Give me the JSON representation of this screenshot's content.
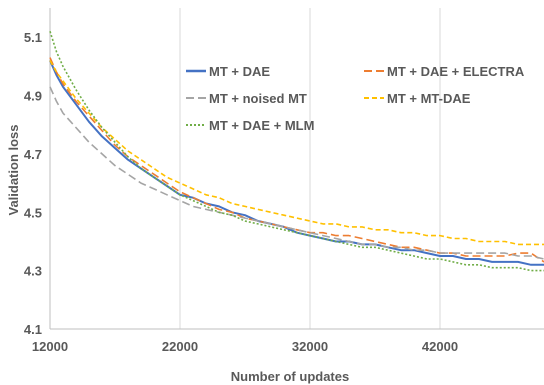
{
  "chart_data": {
    "type": "line",
    "title": "",
    "xlabel": "Number of updates",
    "ylabel": "Validation loss",
    "xlim": [
      12000,
      50000
    ],
    "ylim": [
      4.1,
      5.2
    ],
    "xticks": [
      12000,
      22000,
      32000,
      42000
    ],
    "xtick_labels": [
      "12000",
      "22000",
      "32000",
      "42000"
    ],
    "yticks": [
      4.1,
      4.3,
      4.5,
      4.7,
      4.9,
      5.1
    ],
    "ytick_labels": [
      "4.1",
      "4.3",
      "4.5",
      "4.7",
      "4.9",
      "5.1"
    ],
    "grid": {
      "vertical": true,
      "horizontal": false
    },
    "legend_position": "inside-top",
    "series": [
      {
        "name": "MT + DAE",
        "color": "#4472c4",
        "dash": "solid",
        "x": [
          12000,
          12500,
          13000,
          14000,
          15000,
          16000,
          17000,
          18000,
          19000,
          20000,
          21000,
          22000,
          23000,
          24000,
          25000,
          26000,
          27000,
          28000,
          29000,
          30000,
          31000,
          32000,
          33000,
          34000,
          35000,
          36000,
          37000,
          38000,
          39000,
          40000,
          41000,
          42000,
          43000,
          44000,
          45000,
          46000,
          47000,
          48000,
          49000,
          50000
        ],
        "y": [
          5.02,
          4.97,
          4.93,
          4.87,
          4.81,
          4.76,
          4.72,
          4.68,
          4.65,
          4.62,
          4.59,
          4.56,
          4.55,
          4.53,
          4.52,
          4.5,
          4.49,
          4.47,
          4.46,
          4.45,
          4.43,
          4.42,
          4.41,
          4.4,
          4.4,
          4.39,
          4.39,
          4.38,
          4.37,
          4.37,
          4.36,
          4.35,
          4.35,
          4.34,
          4.34,
          4.33,
          4.33,
          4.33,
          4.32,
          4.32
        ]
      },
      {
        "name": "MT + DAE + ELECTRA",
        "color": "#ed7d31",
        "dash": "long-dash",
        "x": [
          12000,
          12500,
          13000,
          14000,
          15000,
          16000,
          17000,
          18000,
          19000,
          20000,
          21000,
          22000,
          23000,
          24000,
          25000,
          26000,
          27000,
          28000,
          29000,
          30000,
          31000,
          32000,
          33000,
          34000,
          35000,
          36000,
          37000,
          38000,
          39000,
          40000,
          41000,
          42000,
          43000,
          44000,
          45000,
          46000,
          47000,
          48000,
          49000,
          50000
        ],
        "y": [
          5.03,
          4.98,
          4.94,
          4.88,
          4.83,
          4.78,
          4.73,
          4.69,
          4.66,
          4.63,
          4.6,
          4.57,
          4.55,
          4.53,
          4.51,
          4.5,
          4.48,
          4.47,
          4.46,
          4.45,
          4.44,
          4.43,
          4.43,
          4.42,
          4.42,
          4.41,
          4.4,
          4.39,
          4.38,
          4.38,
          4.37,
          4.36,
          4.36,
          4.35,
          4.35,
          4.35,
          4.35,
          4.36,
          4.36,
          4.33
        ]
      },
      {
        "name": "MT + noised MT",
        "color": "#a5a5a5",
        "dash": "long-dash",
        "x": [
          12000,
          12500,
          13000,
          14000,
          15000,
          16000,
          17000,
          18000,
          19000,
          20000,
          21000,
          22000,
          23000,
          24000,
          25000,
          26000,
          27000,
          28000,
          29000,
          30000,
          31000,
          32000,
          33000,
          34000,
          35000,
          36000,
          37000,
          38000,
          39000,
          40000,
          41000,
          42000,
          43000,
          44000,
          45000,
          46000,
          47000,
          48000,
          49000,
          50000
        ],
        "y": [
          4.93,
          4.88,
          4.84,
          4.79,
          4.74,
          4.7,
          4.66,
          4.63,
          4.6,
          4.58,
          4.56,
          4.54,
          4.52,
          4.51,
          4.5,
          4.49,
          4.48,
          4.47,
          4.46,
          4.45,
          4.44,
          4.43,
          4.42,
          4.41,
          4.4,
          4.39,
          4.39,
          4.38,
          4.38,
          4.37,
          4.37,
          4.36,
          4.36,
          4.36,
          4.36,
          4.36,
          4.36,
          4.35,
          4.35,
          4.34
        ]
      },
      {
        "name": "MT + MT-DAE",
        "color": "#ffc000",
        "dash": "dash",
        "x": [
          12000,
          12500,
          13000,
          14000,
          15000,
          16000,
          17000,
          18000,
          19000,
          20000,
          21000,
          22000,
          23000,
          24000,
          25000,
          26000,
          27000,
          28000,
          29000,
          30000,
          31000,
          32000,
          33000,
          34000,
          35000,
          36000,
          37000,
          38000,
          39000,
          40000,
          41000,
          42000,
          43000,
          44000,
          45000,
          46000,
          47000,
          48000,
          49000,
          50000
        ],
        "y": [
          5.02,
          4.98,
          4.95,
          4.89,
          4.84,
          4.79,
          4.75,
          4.71,
          4.68,
          4.65,
          4.62,
          4.6,
          4.58,
          4.56,
          4.55,
          4.53,
          4.52,
          4.51,
          4.5,
          4.49,
          4.48,
          4.47,
          4.46,
          4.46,
          4.45,
          4.45,
          4.44,
          4.44,
          4.43,
          4.43,
          4.42,
          4.42,
          4.41,
          4.41,
          4.4,
          4.4,
          4.4,
          4.39,
          4.39,
          4.39
        ]
      },
      {
        "name": "MT + DAE + MLM",
        "color": "#70ad47",
        "dash": "dot",
        "x": [
          12000,
          12500,
          13000,
          14000,
          15000,
          16000,
          17000,
          18000,
          19000,
          20000,
          21000,
          22000,
          23000,
          24000,
          25000,
          26000,
          27000,
          28000,
          29000,
          30000,
          31000,
          32000,
          33000,
          34000,
          35000,
          36000,
          37000,
          38000,
          39000,
          40000,
          41000,
          42000,
          43000,
          44000,
          45000,
          46000,
          47000,
          48000,
          49000,
          50000
        ],
        "y": [
          5.12,
          5.05,
          5.0,
          4.92,
          4.85,
          4.79,
          4.74,
          4.69,
          4.65,
          4.62,
          4.59,
          4.56,
          4.54,
          4.52,
          4.5,
          4.49,
          4.47,
          4.46,
          4.45,
          4.44,
          4.43,
          4.42,
          4.41,
          4.4,
          4.39,
          4.38,
          4.38,
          4.37,
          4.36,
          4.35,
          4.34,
          4.34,
          4.33,
          4.32,
          4.32,
          4.31,
          4.31,
          4.31,
          4.3,
          4.3
        ]
      }
    ]
  }
}
